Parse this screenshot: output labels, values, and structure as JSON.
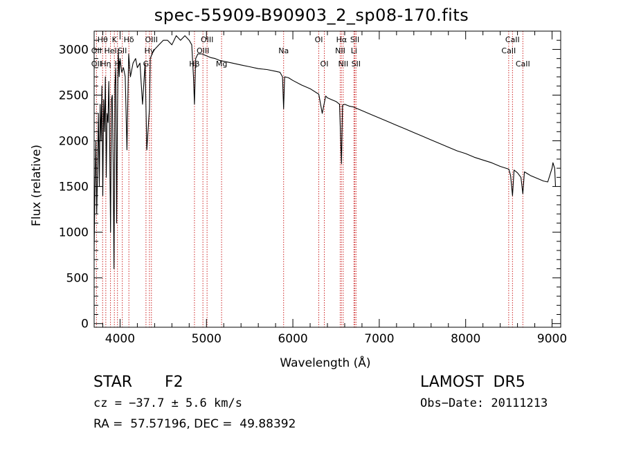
{
  "chart_data": {
    "type": "line",
    "title": "spec-55909-B90903_2_sp08-170.fits",
    "xlabel": "Wavelength (Å)",
    "ylabel": "Flux (relative)",
    "xlim": [
      3700,
      9100
    ],
    "ylim": [
      -40,
      3200
    ],
    "xticks": [
      4000,
      5000,
      6000,
      7000,
      8000,
      9000
    ],
    "yticks": [
      0,
      500,
      1000,
      1500,
      2000,
      2500,
      3000
    ],
    "series": [
      {
        "x": [
          3700,
          3710,
          3720,
          3730,
          3740,
          3750,
          3760,
          3770,
          3780,
          3790,
          3800,
          3810,
          3820,
          3830,
          3840,
          3850,
          3860,
          3870,
          3880,
          3890,
          3900,
          3910,
          3920,
          3930,
          3940,
          3950,
          3960,
          3970,
          3980,
          3990,
          4000,
          4020,
          4040,
          4060,
          4080,
          4100,
          4120,
          4150,
          4180,
          4200,
          4230,
          4260,
          4290,
          4310,
          4330,
          4340,
          4350,
          4370,
          4400,
          4450,
          4500,
          4550,
          4600,
          4650,
          4700,
          4750,
          4800,
          4830,
          4850,
          4861,
          4875,
          4900,
          4950,
          5000,
          5050,
          5100,
          5150,
          5200,
          5300,
          5400,
          5500,
          5600,
          5700,
          5800,
          5850,
          5880,
          5893,
          5905,
          5950,
          6000,
          6100,
          6200,
          6300,
          6340,
          6380,
          6400,
          6450,
          6500,
          6540,
          6563,
          6575,
          6600,
          6650,
          6700,
          6800,
          6900,
          7000,
          7100,
          7200,
          7300,
          7400,
          7500,
          7600,
          7700,
          7800,
          7900,
          8000,
          8100,
          8200,
          8300,
          8400,
          8500,
          8520,
          8542,
          8560,
          8600,
          8640,
          8662,
          8680,
          8750,
          8800,
          8850,
          8900,
          8950,
          8980,
          9000,
          9010,
          9020,
          9030,
          9040
        ],
        "y": [
          800,
          1500,
          2000,
          1200,
          1700,
          2300,
          1500,
          2400,
          2000,
          2600,
          1400,
          2450,
          2100,
          2700,
          1600,
          2300,
          2200,
          2650,
          1900,
          1000,
          2450,
          2500,
          1750,
          600,
          2600,
          2800,
          1100,
          2300,
          3000,
          2700,
          2900,
          2750,
          2800,
          2700,
          1900,
          2950,
          2700,
          2850,
          2900,
          2800,
          2850,
          2400,
          2850,
          1900,
          2200,
          2350,
          2900,
          2950,
          3000,
          3050,
          3100,
          3100,
          3050,
          3150,
          3100,
          3150,
          3100,
          3050,
          2700,
          2400,
          2900,
          2950,
          2950,
          2930,
          2910,
          2900,
          2880,
          2870,
          2850,
          2830,
          2810,
          2790,
          2780,
          2760,
          2750,
          2700,
          2350,
          2700,
          2690,
          2660,
          2610,
          2570,
          2510,
          2300,
          2490,
          2470,
          2450,
          2430,
          2400,
          1750,
          2390,
          2400,
          2380,
          2370,
          2330,
          2290,
          2250,
          2210,
          2170,
          2130,
          2090,
          2050,
          2010,
          1970,
          1930,
          1890,
          1860,
          1820,
          1790,
          1760,
          1720,
          1690,
          1620,
          1400,
          1680,
          1650,
          1600,
          1420,
          1660,
          1620,
          1600,
          1580,
          1560,
          1550,
          1640,
          1700,
          1760,
          1730,
          1700,
          1500
        ]
      }
    ],
    "lines": {
      "positions": [
        3727,
        3798,
        3835,
        3889,
        3934,
        3970,
        4026,
        4102,
        4300,
        4340,
        4363,
        4861,
        4959,
        5007,
        5175,
        5893,
        6300,
        6364,
        6548,
        6563,
        6583,
        6707,
        6717,
        6731,
        8498,
        8542,
        8662
      ],
      "labels": [
        {
          "text": "Hθ",
          "wl": 3798,
          "row": 0
        },
        {
          "text": "K",
          "wl": 3934,
          "row": 0
        },
        {
          "text": "Hδ",
          "wl": 4102,
          "row": 0
        },
        {
          "text": "OIII",
          "wl": 4363,
          "row": 0
        },
        {
          "text": "OIII",
          "wl": 5007,
          "row": 0
        },
        {
          "text": "OI",
          "wl": 6300,
          "row": 0
        },
        {
          "text": "Hα",
          "wl": 6563,
          "row": 0
        },
        {
          "text": "SII",
          "wl": 6717,
          "row": 0
        },
        {
          "text": "CaII",
          "wl": 8542,
          "row": 0
        },
        {
          "text": "OII",
          "wl": 3727,
          "row": 1
        },
        {
          "text": "HeI",
          "wl": 3889,
          "row": 1
        },
        {
          "text": "SII",
          "wl": 4026,
          "row": 1
        },
        {
          "text": "Hγ",
          "wl": 4340,
          "row": 1
        },
        {
          "text": "OIII",
          "wl": 4959,
          "row": 1
        },
        {
          "text": "Na",
          "wl": 5893,
          "row": 1
        },
        {
          "text": "NII",
          "wl": 6548,
          "row": 1
        },
        {
          "text": "Li",
          "wl": 6707,
          "row": 1
        },
        {
          "text": "CaII",
          "wl": 8498,
          "row": 1
        },
        {
          "text": "OII",
          "wl": 3727,
          "row": 2
        },
        {
          "text": "Hη",
          "wl": 3835,
          "row": 2
        },
        {
          "text": "H",
          "wl": 3970,
          "row": 2
        },
        {
          "text": "G",
          "wl": 4300,
          "row": 2
        },
        {
          "text": "Hβ",
          "wl": 4861,
          "row": 2
        },
        {
          "text": "Mg",
          "wl": 5175,
          "row": 2
        },
        {
          "text": "OI",
          "wl": 6364,
          "row": 2
        },
        {
          "text": "NII",
          "wl": 6583,
          "row": 2
        },
        {
          "text": "SII",
          "wl": 6731,
          "row": 2
        },
        {
          "text": "CaII",
          "wl": 8662,
          "row": 2
        }
      ]
    }
  },
  "info": {
    "class_label": "STAR",
    "subclass": "F2",
    "survey": "LAMOST  DR5",
    "cz": "cz = −37.7 ± 5.6 km/s",
    "obs_date": "Obs−Date: 20111213",
    "radec": "RA =  57.57196, DEC =  49.88392"
  }
}
